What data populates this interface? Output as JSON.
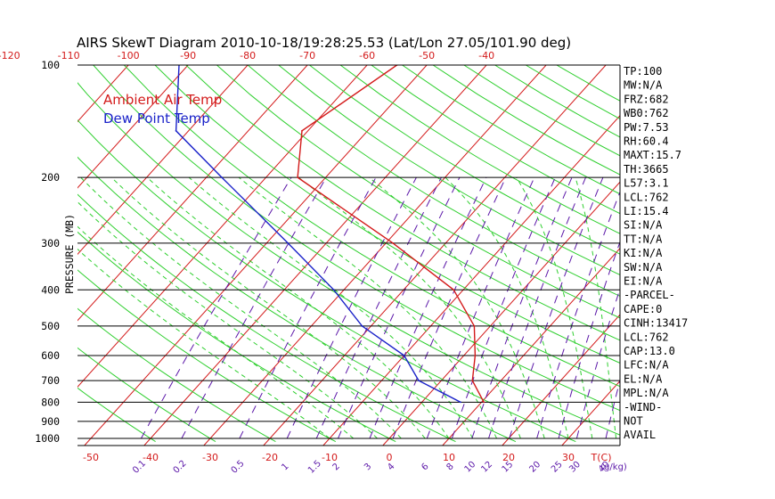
{
  "chart_data": {
    "type": "line",
    "title": "AIRS SkewT Diagram 2010-10-18/19:28:25.53 (Lat/Lon 27.05/101.90 deg)",
    "ylabel": "PRESSURE (MB)",
    "xlabel": "T(C)",
    "mixing_ratio_label": "(g/kg)",
    "pressure_ticks": [
      "100",
      "200",
      "300",
      "400",
      "500",
      "600",
      "700",
      "800",
      "900",
      "1000"
    ],
    "pressure_ticks_values": [
      100,
      200,
      300,
      400,
      500,
      600,
      700,
      800,
      900,
      1000
    ],
    "top_temp_ticks": [
      "-120",
      "-110",
      "-100",
      "-90",
      "-80",
      "-70",
      "-60",
      "-50",
      "-40"
    ],
    "top_temp_values": [
      -120,
      -110,
      -100,
      -90,
      -80,
      -70,
      -60,
      -50,
      -40
    ],
    "bottom_temp_ticks": [
      "-50",
      "-40",
      "-30",
      "-20",
      "-10",
      "0",
      "10",
      "20",
      "30"
    ],
    "bottom_temp_values": [
      -50,
      -40,
      -30,
      -20,
      -10,
      0,
      10,
      20,
      30
    ],
    "mixing_ratio_ticks": [
      "0.1",
      "0.2",
      "0.5",
      "1",
      "1.5",
      "2",
      "3",
      "4",
      "6",
      "8",
      "10",
      "12",
      "15",
      "20",
      "25",
      "30",
      "40"
    ],
    "mixing_ratio_values": [
      0.1,
      0.2,
      0.5,
      1,
      1.5,
      2,
      3,
      4,
      6,
      8,
      10,
      12,
      15,
      20,
      25,
      30,
      40
    ],
    "series": [
      {
        "name": "Ambient Air Temp",
        "color": "#d31a1a",
        "pressure": [
          800,
          700,
          600,
          500,
          400,
          300,
          200,
          150,
          100
        ],
        "temperature": [
          10.4,
          5.2,
          1.9,
          -2.7,
          -11.6,
          -28.8,
          -54.7,
          -61.0,
          -55.0
        ]
      },
      {
        "name": "Dew Point Temp",
        "color": "#1a22c9",
        "pressure": [
          800,
          700,
          600,
          500,
          400,
          300,
          200,
          150,
          100
        ],
        "temperature": [
          6.5,
          -3.8,
          -10.0,
          -21.5,
          -31.7,
          -46.4,
          -67.4,
          -82.1,
          -91.5
        ]
      }
    ],
    "legend_position": "top-left",
    "sidebar": [
      "TP:100",
      "MW:N/A",
      "FRZ:682",
      "WB0:762",
      "PW:7.53",
      "RH:60.4",
      "MAXT:15.7",
      "TH:3665",
      "L57:3.1",
      "LCL:762",
      "LI:15.4",
      "SI:N/A",
      "TT:N/A",
      "KI:N/A",
      "SW:N/A",
      "EI:N/A",
      "-PARCEL-",
      "CAPE:0",
      "CINH:13417",
      "LCL:762",
      "CAP:13.0",
      "LFC:N/A",
      "EL:N/A",
      "MPL:N/A",
      "-WIND-",
      "NOT",
      "AVAIL"
    ],
    "colors": {
      "isotherm": "#d31a1a",
      "dry_adiabat": "#2fcf2f",
      "moist_adiabat": "#2fcf2f",
      "mixing_ratio": "#5b17a8",
      "isobar": "#000000"
    }
  }
}
